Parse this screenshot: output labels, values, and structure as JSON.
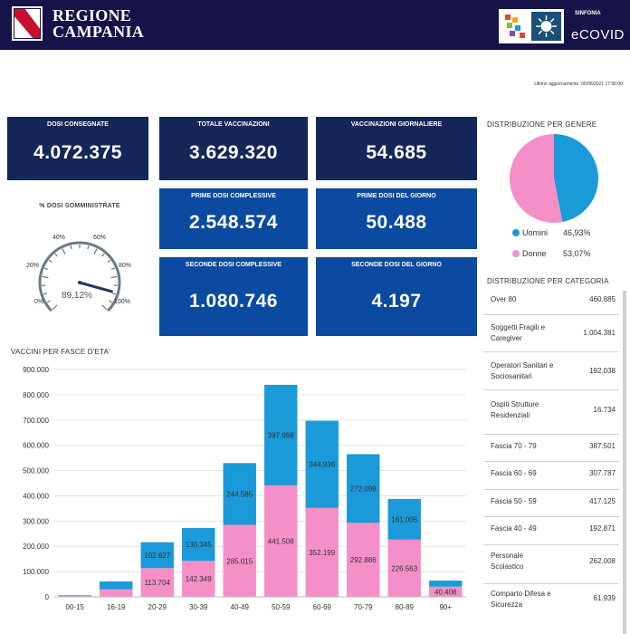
{
  "header": {
    "brand_line1": "REGIONE",
    "brand_line2": "CAMPANIA",
    "sinfonia": "SINFONIA",
    "ecovid": "eCOVID"
  },
  "last_update": "Ultimo aggiornamento: 05/06/2021 17:00:00",
  "kpis": {
    "dosi_consegnate": {
      "title": "DOSI CONSEGNATE",
      "value": "4.072.375"
    },
    "totale_vaccinazioni": {
      "title": "TOTALE VACCINAZIONI",
      "value": "3.629.320"
    },
    "vaccinazioni_giornaliere": {
      "title": "VACCINAZIONI GIORNALIERE",
      "value": "54.685"
    },
    "prime_dosi_complessive": {
      "title": "PRIME DOSI COMPLESSIVE",
      "value": "2.548.574"
    },
    "prime_dosi_giorno": {
      "title": "PRIME DOSI DEL GIORNO",
      "value": "50.488"
    },
    "seconde_dosi_complessive": {
      "title": "SECONDE DOSI COMPLESSIVE",
      "value": "1.080.746"
    },
    "seconde_dosi_giorno": {
      "title": "SECONDE DOSI DEL GIORNO",
      "value": "4.197"
    }
  },
  "gauge": {
    "title": "% DOSI SOMMINISTRATE",
    "value_label": "89,12%",
    "value": 89.12,
    "ticks": [
      "0%",
      "20%",
      "40%",
      "60%",
      "80%",
      "100%"
    ]
  },
  "gender": {
    "title": "DISTRIBUZIONE PER GENERE",
    "items": [
      {
        "label": "Uomini",
        "pct_label": "46,93%",
        "value": 46.93,
        "color": "#1a9ad9"
      },
      {
        "label": "Donne",
        "pct_label": "53,07%",
        "value": 53.07,
        "color": "#f48fc8"
      }
    ]
  },
  "category": {
    "title": "DISTRIBUZIONE PER CATEGORIA",
    "rows": [
      {
        "label1": "Over 80",
        "label2": "",
        "value": "460.885"
      },
      {
        "label1": "Soggetti Fragili e",
        "label2": "Caregiver",
        "value": "1.004.381"
      },
      {
        "label1": "Operatori Sanitari e",
        "label2": "Sociosanitari",
        "value": "192.038"
      },
      {
        "label1": "Ospiti Strutture",
        "label2": "Residenziali",
        "value": "16.734"
      },
      {
        "label1": "Fascia 70 - 79",
        "label2": "",
        "value": "387.501"
      },
      {
        "label1": "Fascia 60 - 69",
        "label2": "",
        "value": "307.787"
      },
      {
        "label1": "Fascia 50 - 59",
        "label2": "",
        "value": "417.125"
      },
      {
        "label1": "Fascia 40 - 49",
        "label2": "",
        "value": "192.871"
      },
      {
        "label1": "Personale",
        "label2": "Scolastico",
        "value": "262.008"
      },
      {
        "label1": "Comparto Difesa e",
        "label2": "Sicurezza",
        "value": "61.939"
      }
    ]
  },
  "chart_title": "VACCINI PER FASCE D'ETA'",
  "chart_data": {
    "type": "bar",
    "stacked": true,
    "categories": [
      "00-15",
      "16-19",
      "20-29",
      "30-39",
      "40-49",
      "50-59",
      "60-69",
      "70-79",
      "80-89",
      "90+"
    ],
    "series": [
      {
        "name": "Donne",
        "color": "#f48fc8",
        "values": [
          3000,
          30000,
          113704,
          142349,
          285015,
          441508,
          352199,
          292886,
          226563,
          40408
        ],
        "labels": [
          "",
          "",
          "113.704",
          "142.349",
          "285.015",
          "441.508",
          "352.199",
          "292.886",
          "226.563",
          "40.408"
        ]
      },
      {
        "name": "Uomini",
        "color": "#1a9ad9",
        "values": [
          3000,
          31000,
          102627,
          130345,
          244585,
          397988,
          344936,
          272098,
          161005,
          24000
        ],
        "labels": [
          "",
          "",
          "102.627",
          "130.345",
          "244.585",
          "397.988",
          "344.936",
          "272.098",
          "161.005",
          ""
        ]
      }
    ],
    "ylim": [
      0,
      900000
    ],
    "yticks": [
      "0",
      "100.000",
      "200.000",
      "300.000",
      "400.000",
      "500.000",
      "600.000",
      "700.000",
      "800.000",
      "900.000"
    ],
    "grid": true
  }
}
